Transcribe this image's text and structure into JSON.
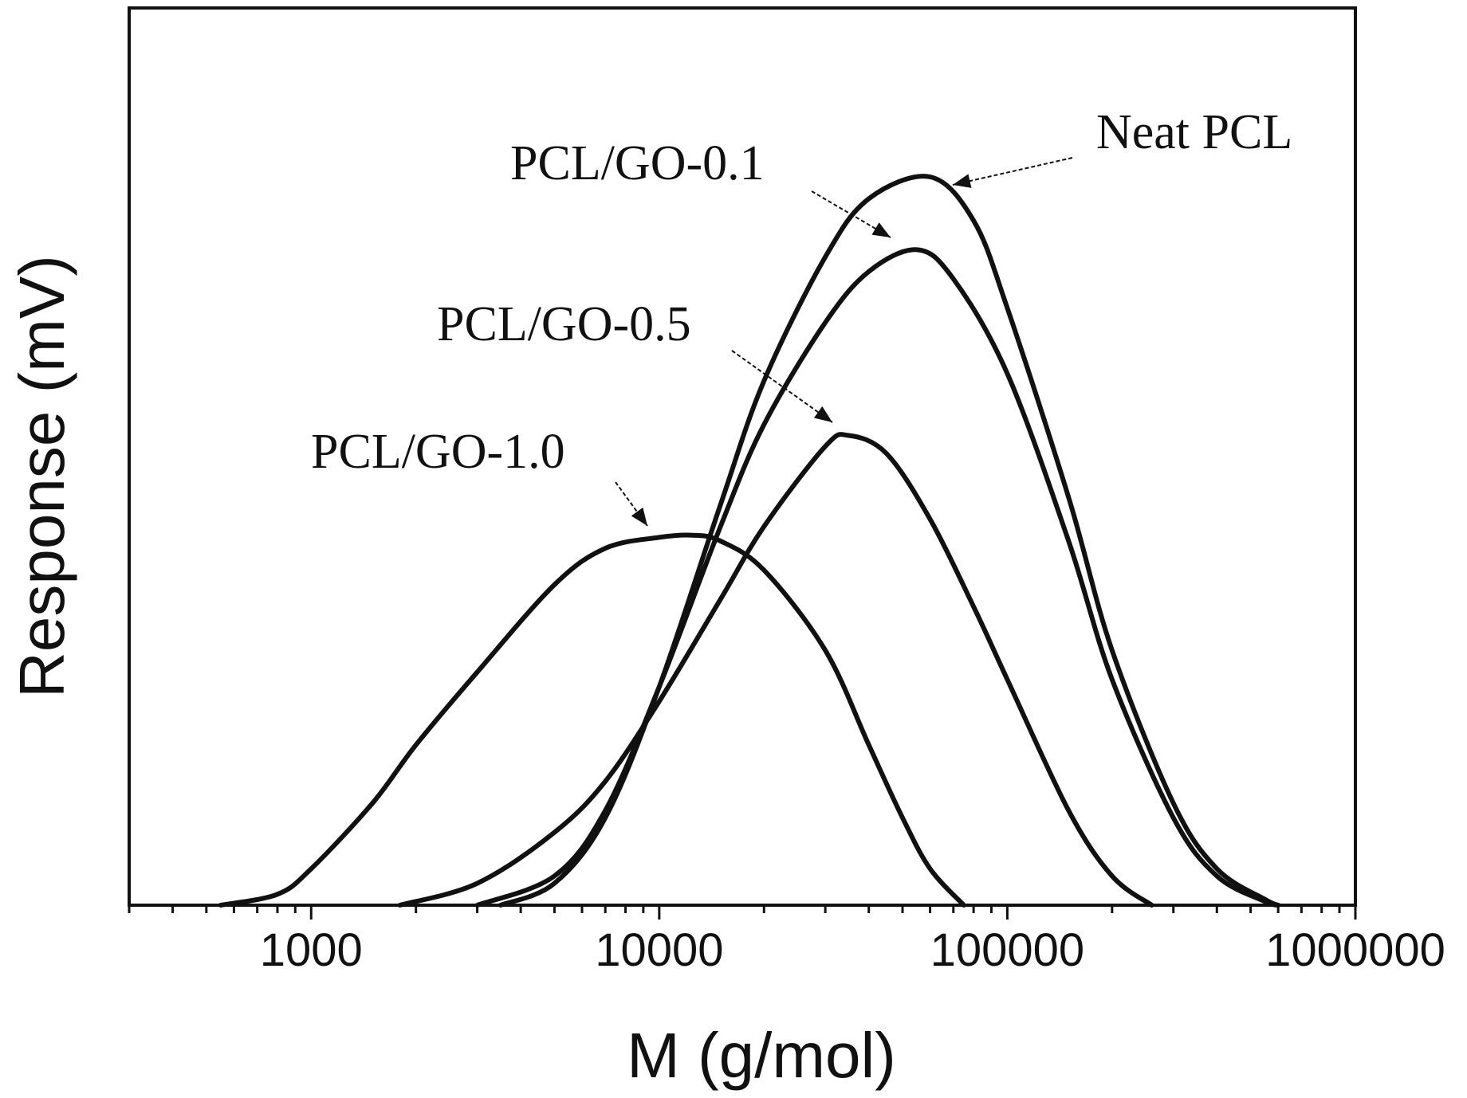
{
  "chart_data": {
    "type": "line",
    "title": "",
    "xlabel": "M (g/mol)",
    "ylabel": "Response (mV)",
    "xscale": "log",
    "xlim": [
      300,
      1000000
    ],
    "ylim": [
      0,
      1.0
    ],
    "grid": false,
    "x_ticks": [
      1000,
      10000,
      100000,
      1000000
    ],
    "x_tick_labels": [
      "1000",
      "10000",
      "100000",
      "1000000"
    ],
    "series": [
      {
        "name": "Neat PCL",
        "label": "Neat PCL",
        "peak_M": 60000,
        "peak_response": 1.0,
        "points": [
          [
            3500,
            0.0
          ],
          [
            5000,
            0.03
          ],
          [
            7000,
            0.12
          ],
          [
            10000,
            0.3
          ],
          [
            15000,
            0.55
          ],
          [
            20000,
            0.72
          ],
          [
            30000,
            0.89
          ],
          [
            40000,
            0.97
          ],
          [
            60000,
            1.0
          ],
          [
            80000,
            0.94
          ],
          [
            100000,
            0.82
          ],
          [
            150000,
            0.56
          ],
          [
            200000,
            0.35
          ],
          [
            300000,
            0.14
          ],
          [
            400000,
            0.05
          ],
          [
            550000,
            0.008
          ],
          [
            600000,
            0.0
          ]
        ]
      },
      {
        "name": "PCL/GO-0.1",
        "label": "PCL/GO-0.1",
        "peak_M": 55000,
        "peak_response": 0.9,
        "points": [
          [
            3000,
            0.0
          ],
          [
            5000,
            0.04
          ],
          [
            7000,
            0.13
          ],
          [
            10000,
            0.3
          ],
          [
            15000,
            0.52
          ],
          [
            20000,
            0.66
          ],
          [
            30000,
            0.8
          ],
          [
            40000,
            0.87
          ],
          [
            55000,
            0.9
          ],
          [
            70000,
            0.86
          ],
          [
            100000,
            0.73
          ],
          [
            150000,
            0.5
          ],
          [
            200000,
            0.31
          ],
          [
            300000,
            0.12
          ],
          [
            400000,
            0.04
          ],
          [
            550000,
            0.005
          ],
          [
            600000,
            0.0
          ]
        ]
      },
      {
        "name": "PCL/GO-0.5",
        "label": "PCL/GO-0.5",
        "peak_M": 35000,
        "peak_response": 0.645,
        "points": [
          [
            1800,
            0.0
          ],
          [
            3000,
            0.03
          ],
          [
            5000,
            0.1
          ],
          [
            7000,
            0.17
          ],
          [
            10000,
            0.28
          ],
          [
            15000,
            0.42
          ],
          [
            20000,
            0.52
          ],
          [
            30000,
            0.63
          ],
          [
            35000,
            0.645
          ],
          [
            45000,
            0.62
          ],
          [
            60000,
            0.53
          ],
          [
            80000,
            0.41
          ],
          [
            100000,
            0.31
          ],
          [
            150000,
            0.13
          ],
          [
            200000,
            0.04
          ],
          [
            260000,
            0.0
          ]
        ]
      },
      {
        "name": "PCL/GO-1.0",
        "label": "PCL/GO-1.0",
        "peak_M": 12500,
        "peak_response": 0.508,
        "points": [
          [
            550,
            0.0
          ],
          [
            800,
            0.015
          ],
          [
            1000,
            0.05
          ],
          [
            1500,
            0.14
          ],
          [
            2000,
            0.22
          ],
          [
            3000,
            0.32
          ],
          [
            5000,
            0.44
          ],
          [
            7000,
            0.49
          ],
          [
            10000,
            0.505
          ],
          [
            12500,
            0.508
          ],
          [
            15000,
            0.5
          ],
          [
            20000,
            0.46
          ],
          [
            30000,
            0.35
          ],
          [
            40000,
            0.22
          ],
          [
            50000,
            0.12
          ],
          [
            60000,
            0.05
          ],
          [
            75000,
            0.0
          ]
        ]
      }
    ],
    "annotations": [
      {
        "text": "Neat PCL",
        "series": "Neat PCL"
      },
      {
        "text": "PCL/GO-0.1",
        "series": "PCL/GO-0.1"
      },
      {
        "text": "PCL/GO-0.5",
        "series": "PCL/GO-0.5"
      },
      {
        "text": "PCL/GO-1.0",
        "series": "PCL/GO-1.0"
      }
    ]
  }
}
